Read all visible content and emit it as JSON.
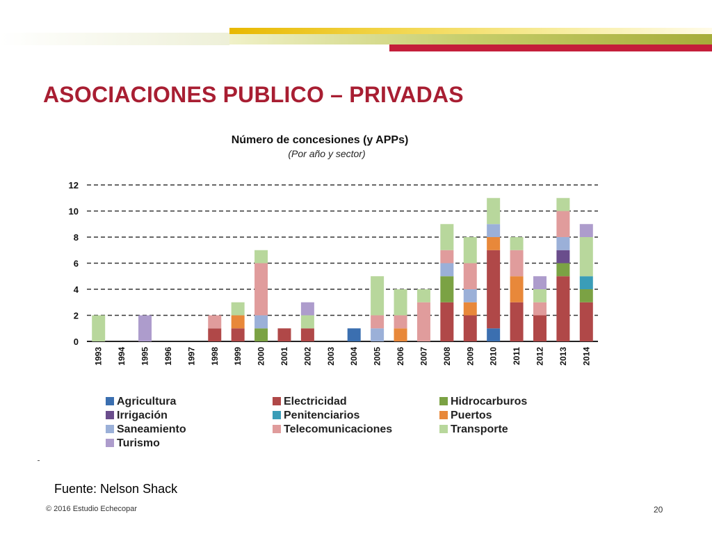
{
  "slide": {
    "title": "ASOCIACIONES PUBLICO – PRIVADAS",
    "source": "Fuente:  Nelson Shack",
    "copyright": "© 2016 Estudio Echecopar",
    "page_number": "20"
  },
  "colors": {
    "title": "#a81e32",
    "accent_red": "#c41e3a",
    "accent_yellow": "#e8b800",
    "accent_green": "#a6ad3a"
  },
  "chart_data": {
    "type": "bar",
    "stacked": true,
    "title": "Número de concesiones (y APPs)",
    "subtitle": "(Por año y sector)",
    "xlabel": "",
    "ylabel": "",
    "ylim": [
      0,
      12
    ],
    "yticks": [
      "0",
      "2",
      "4",
      "6",
      "8",
      "10",
      "12"
    ],
    "grid": "dashed horizontal",
    "legend_position": "bottom",
    "categories": [
      "1993",
      "1994",
      "1995",
      "1996",
      "1997",
      "1998",
      "1999",
      "2000",
      "2001",
      "2002",
      "2003",
      "2004",
      "2005",
      "2006",
      "2007",
      "2008",
      "2009",
      "2010",
      "2011",
      "2012",
      "2013",
      "2014"
    ],
    "series": [
      {
        "name": "Agricultura",
        "color": "#3b6fb0",
        "values": [
          0,
          0,
          0,
          0,
          0,
          0,
          0,
          0,
          0,
          0,
          0,
          1,
          0,
          0,
          0,
          0,
          0,
          1,
          0,
          0,
          0,
          0
        ]
      },
      {
        "name": "Electricidad",
        "color": "#b04848",
        "values": [
          0,
          0,
          0,
          0,
          0,
          1,
          1,
          0,
          1,
          1,
          0,
          0,
          0,
          0,
          0,
          3,
          2,
          6,
          3,
          2,
          5,
          3
        ]
      },
      {
        "name": "Hidrocarburos",
        "color": "#7ba244",
        "values": [
          0,
          0,
          0,
          0,
          0,
          0,
          0,
          1,
          0,
          0,
          0,
          0,
          0,
          0,
          0,
          2,
          0,
          0,
          0,
          0,
          1,
          1
        ]
      },
      {
        "name": "Irrigación",
        "color": "#6a4d8c",
        "values": [
          0,
          0,
          0,
          0,
          0,
          0,
          0,
          0,
          0,
          0,
          0,
          0,
          0,
          0,
          0,
          0,
          0,
          0,
          0,
          0,
          1,
          0
        ]
      },
      {
        "name": "Penitenciarios",
        "color": "#3a9db8",
        "values": [
          0,
          0,
          0,
          0,
          0,
          0,
          0,
          0,
          0,
          0,
          0,
          0,
          0,
          0,
          0,
          0,
          0,
          0,
          0,
          0,
          0,
          1
        ]
      },
      {
        "name": "Puertos",
        "color": "#e8883a",
        "values": [
          0,
          0,
          0,
          0,
          0,
          0,
          1,
          0,
          0,
          0,
          0,
          0,
          0,
          1,
          0,
          0,
          1,
          1,
          2,
          0,
          0,
          0
        ]
      },
      {
        "name": "Saneamiento",
        "color": "#9bb0d8",
        "values": [
          0,
          0,
          0,
          0,
          0,
          0,
          0,
          1,
          0,
          0,
          0,
          0,
          1,
          0,
          0,
          1,
          1,
          1,
          0,
          0,
          1,
          0
        ]
      },
      {
        "name": "Telecomunicaciones",
        "color": "#e09c9c",
        "values": [
          0,
          0,
          0,
          0,
          0,
          1,
          0,
          4,
          0,
          0,
          0,
          0,
          1,
          1,
          3,
          1,
          2,
          0,
          2,
          1,
          2,
          0
        ]
      },
      {
        "name": "Transporte",
        "color": "#b8d79c",
        "values": [
          2,
          0,
          0,
          0,
          0,
          0,
          1,
          1,
          0,
          1,
          0,
          0,
          3,
          2,
          1,
          2,
          2,
          2,
          1,
          1,
          1,
          3
        ]
      },
      {
        "name": "Turismo",
        "color": "#ad9ccc",
        "values": [
          0,
          0,
          2,
          0,
          0,
          0,
          0,
          0,
          0,
          1,
          0,
          0,
          0,
          0,
          0,
          0,
          0,
          0,
          0,
          1,
          0,
          1
        ]
      }
    ],
    "legend_order": [
      "Agricultura",
      "Electricidad",
      "Hidrocarburos",
      "Irrigación",
      "Penitenciarios",
      "Puertos",
      "Saneamiento",
      "Telecomunicaciones",
      "Transporte",
      "Turismo"
    ]
  }
}
